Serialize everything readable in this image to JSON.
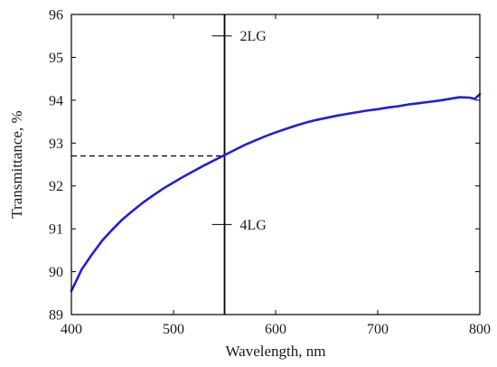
{
  "chart_data": {
    "type": "line",
    "xlabel": "Wavelength, nm",
    "ylabel": "Transmittance, %",
    "xlim": [
      400,
      800
    ],
    "ylim": [
      89,
      96
    ],
    "x_ticks": [
      400,
      500,
      600,
      700,
      800
    ],
    "y_ticks": [
      89,
      90,
      91,
      92,
      93,
      94,
      95,
      96
    ],
    "grid": false,
    "series": [
      {
        "color": "#1f1fe0",
        "x": [
          400,
          410,
          420,
          430,
          440,
          450,
          460,
          470,
          480,
          490,
          500,
          510,
          520,
          530,
          540,
          550,
          560,
          570,
          580,
          590,
          600,
          610,
          620,
          630,
          640,
          650,
          660,
          670,
          680,
          690,
          700,
          710,
          720,
          730,
          740,
          750,
          760,
          770,
          780,
          790,
          795,
          800
        ],
        "y": [
          89.55,
          90.05,
          90.4,
          90.72,
          90.98,
          91.22,
          91.42,
          91.61,
          91.78,
          91.94,
          92.08,
          92.22,
          92.35,
          92.48,
          92.6,
          92.72,
          92.84,
          92.96,
          93.06,
          93.16,
          93.25,
          93.33,
          93.41,
          93.48,
          93.54,
          93.59,
          93.64,
          93.68,
          93.72,
          93.76,
          93.79,
          93.83,
          93.86,
          93.9,
          93.93,
          93.96,
          93.99,
          94.03,
          94.07,
          94.06,
          94.03,
          94.14
        ]
      }
    ],
    "reference_line": {
      "x": 550,
      "style": "solid",
      "color": "#000000"
    },
    "dashed_line": {
      "y": 92.7,
      "x_from": 400,
      "x_to": 550,
      "style": "dashed",
      "color": "#000000"
    },
    "annotations": [
      {
        "text": "2LG",
        "x": 550,
        "y": 95.5
      },
      {
        "text": "4LG",
        "x": 550,
        "y": 91.1
      }
    ]
  }
}
